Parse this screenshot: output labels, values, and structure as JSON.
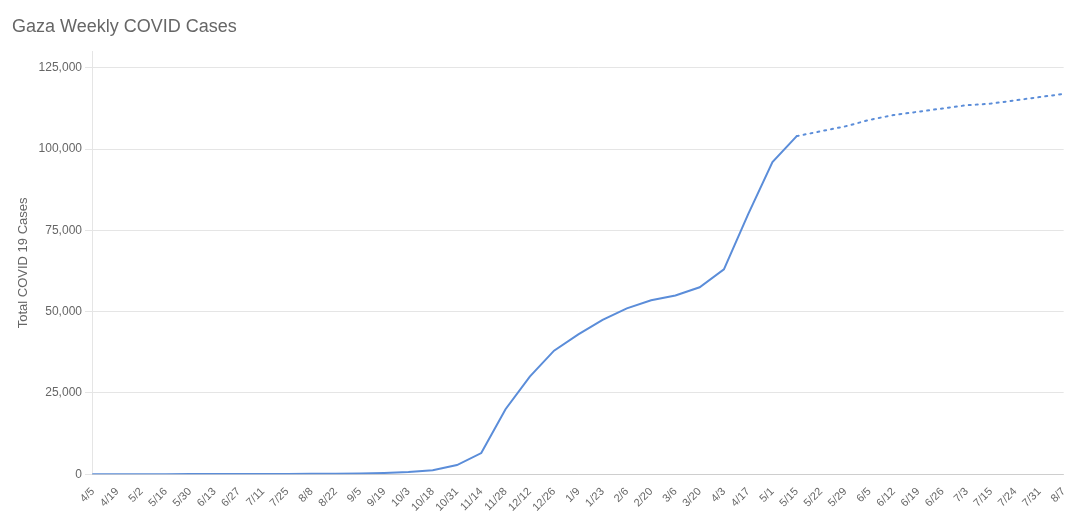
{
  "chart_data": {
    "type": "line",
    "title": "Gaza Weekly COVID Cases",
    "y_label": "Total COVID 19 Cases",
    "categories": [
      "4/5",
      "4/19",
      "5/2",
      "5/16",
      "5/30",
      "6/13",
      "6/27",
      "7/11",
      "7/25",
      "8/8",
      "8/22",
      "9/5",
      "9/19",
      "10/3",
      "10/18",
      "10/31",
      "11/14",
      "11/28",
      "12/12",
      "12/26",
      "1/9",
      "1/23",
      "2/6",
      "2/20",
      "3/6",
      "3/20",
      "4/3",
      "4/17",
      "5/1",
      "5/15",
      "5/22",
      "5/29",
      "6/5",
      "6/12",
      "6/19",
      "6/26",
      "7/3",
      "7/15",
      "7/24",
      "7/31",
      "8/7"
    ],
    "series": [
      {
        "color": "#5b8dd9",
        "line_style": "solid",
        "values": [
          5,
          8,
          12,
          18,
          25,
          35,
          50,
          70,
          100,
          130,
          160,
          200,
          400,
          700,
          1200,
          2800,
          6500,
          20000,
          30000,
          38000,
          43000,
          47500,
          51000,
          53500,
          55000,
          57500,
          63000,
          80000,
          96000,
          104000,
          null,
          null,
          null,
          null,
          null,
          null,
          null,
          null,
          null,
          null,
          null
        ]
      },
      {
        "color": "#5b8dd9",
        "line_style": "dotted",
        "values": [
          null,
          null,
          null,
          null,
          null,
          null,
          null,
          null,
          null,
          null,
          null,
          null,
          null,
          null,
          null,
          null,
          null,
          null,
          null,
          null,
          null,
          null,
          null,
          null,
          null,
          null,
          null,
          null,
          null,
          104000,
          105500,
          107000,
          109000,
          110500,
          111500,
          112500,
          113500,
          114000,
          115000,
          116000,
          117000
        ]
      }
    ],
    "ylim": [
      0,
      130000
    ],
    "yticks": [
      0,
      {
        "value": 25000,
        "label": "25,000"
      },
      {
        "value": 50000,
        "label": "50,000"
      },
      {
        "value": 75000,
        "label": "75,000"
      },
      {
        "value": 100000,
        "label": "100,000"
      },
      {
        "value": 125000,
        "label": "125,000"
      }
    ],
    "grid": true
  }
}
